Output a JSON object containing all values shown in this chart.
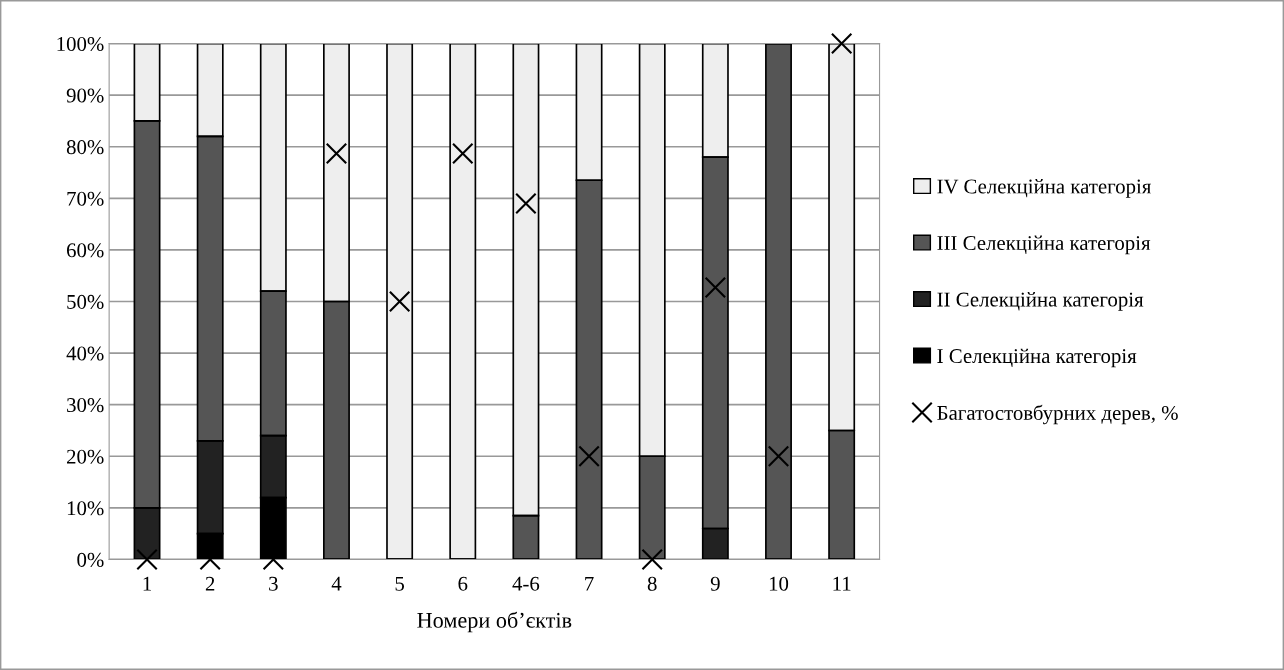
{
  "chart_data": {
    "type": "bar",
    "stacked": true,
    "xlabel": "Номери об’єктів",
    "categories": [
      "1",
      "2",
      "3",
      "4",
      "5",
      "6",
      "4-6",
      "7",
      "8",
      "9",
      "10",
      "11"
    ],
    "series": [
      {
        "name": "I Селекційна категорія",
        "color": "#000000",
        "values": [
          0,
          5,
          12,
          0,
          0,
          0,
          0,
          0,
          0,
          0,
          0,
          0
        ]
      },
      {
        "name": "II Селекційна категорія",
        "color": "#222222",
        "values": [
          10,
          18,
          12,
          0,
          0,
          0,
          0,
          0,
          0,
          6,
          0,
          0
        ]
      },
      {
        "name": "III Селекційна категорія",
        "color": "#555555",
        "values": [
          75,
          59,
          28,
          50,
          0,
          0,
          8.5,
          73.5,
          20,
          72,
          100,
          25
        ]
      },
      {
        "name": "IV Селекційна категорія",
        "color": "#eeeeee",
        "values": [
          15,
          18,
          48,
          50,
          100,
          100,
          91.5,
          26.5,
          80,
          22,
          0,
          75
        ]
      },
      {
        "name": "Багатостовбурних дерев, %",
        "type": "scatter",
        "color": "#000000",
        "values": [
          0,
          0,
          0,
          78.7,
          50,
          78.7,
          69,
          20,
          0,
          52.7,
          20,
          100
        ]
      }
    ],
    "ylim": [
      0,
      100
    ],
    "yticks": [
      {
        "value": 0,
        "label": "0%"
      },
      {
        "value": 10,
        "label": "10%"
      },
      {
        "value": 20,
        "label": "20%"
      },
      {
        "value": 30,
        "label": "30%"
      },
      {
        "value": 40,
        "label": "40%"
      },
      {
        "value": 50,
        "label": "50%"
      },
      {
        "value": 60,
        "label": "60%"
      },
      {
        "value": 70,
        "label": "70%"
      },
      {
        "value": 80,
        "label": "80%"
      },
      {
        "value": 90,
        "label": "90%"
      },
      {
        "value": 100,
        "label": "100%"
      }
    ],
    "grid": "y",
    "legend": "right",
    "marker": "cross"
  }
}
